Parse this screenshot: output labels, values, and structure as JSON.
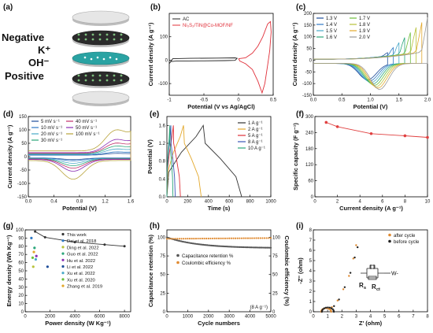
{
  "panel_labels": [
    "(a)",
    "(b)",
    "(c)",
    "(d)",
    "(e)",
    "(f)",
    "(g)",
    "(h)",
    "(i)"
  ],
  "schematic": {
    "labels": [
      "Negative",
      "K⁺",
      "OH⁻",
      "Positive"
    ]
  },
  "colors": {
    "ac": "#222222",
    "hybrid": "#e0303a",
    "f_line": "#e04040",
    "g_line": "#333333",
    "h_retention": "#555555",
    "h_efficiency": "#e08a30"
  },
  "chart_data": [
    {
      "panel": "b",
      "type": "line",
      "xlabel": "Potential (V vs Ag/AgCl)",
      "ylabel": "Current density (A g⁻¹)",
      "xlim": [
        -1,
        0.5
      ],
      "ylim": [
        -150,
        200
      ],
      "xticks": [
        -1,
        -0.5,
        0,
        0.5
      ],
      "yticks": [
        -100,
        0,
        100
      ],
      "legend": "top-left",
      "series": [
        {
          "name": "AC",
          "color": "#222222",
          "points": [
            [
              -1.0,
              -15
            ],
            [
              -0.98,
              -6
            ],
            [
              -0.9,
              -4
            ],
            [
              -0.5,
              -3
            ],
            [
              -0.2,
              -2
            ],
            [
              -0.05,
              -1
            ],
            [
              -0.02,
              8
            ],
            [
              -0.05,
              10
            ],
            [
              -0.3,
              9
            ],
            [
              -0.7,
              8
            ],
            [
              -0.95,
              6
            ],
            [
              -1.0,
              -15
            ]
          ]
        },
        {
          "name": "Ni₃S₂/TiN@Co-MOF/NF",
          "color": "#e0303a",
          "points": [
            [
              0.0,
              6
            ],
            [
              0.1,
              10
            ],
            [
              0.2,
              30
            ],
            [
              0.28,
              60
            ],
            [
              0.35,
              100
            ],
            [
              0.42,
              155
            ],
            [
              0.46,
              165
            ],
            [
              0.47,
              120
            ],
            [
              0.45,
              40
            ],
            [
              0.42,
              -20
            ],
            [
              0.38,
              -100
            ],
            [
              0.34,
              -140
            ],
            [
              0.28,
              -90
            ],
            [
              0.2,
              -40
            ],
            [
              0.1,
              -15
            ],
            [
              0.02,
              -4
            ],
            [
              0.0,
              6
            ]
          ]
        }
      ]
    },
    {
      "panel": "c",
      "type": "line",
      "xlabel": "Potential (V)",
      "ylabel": "Current density (A g⁻¹)",
      "xlim": [
        0.0,
        2.0
      ],
      "ylim": [
        -150,
        200
      ],
      "xticks": [
        0.0,
        0.5,
        1.0,
        1.5,
        2.0
      ],
      "yticks": [
        -150,
        -100,
        -50,
        0,
        50,
        100,
        150,
        200
      ],
      "legend": "top-left",
      "series": [
        {
          "name": "1.3 V",
          "color": "#1f4e9a",
          "vmax": 1.3
        },
        {
          "name": "1.4 V",
          "color": "#2f79c4",
          "vmax": 1.4
        },
        {
          "name": "1.5 V",
          "color": "#48a9c9",
          "vmax": 1.5
        },
        {
          "name": "1.6 V",
          "color": "#2aa67a",
          "vmax": 1.6
        },
        {
          "name": "1.7 V",
          "color": "#6cbf3b",
          "vmax": 1.7
        },
        {
          "name": "1.8 V",
          "color": "#b8c23a",
          "vmax": 1.8
        },
        {
          "name": "1.9 V",
          "color": "#e3a82b",
          "vmax": 1.9
        },
        {
          "name": "2.0 V",
          "color": "#9a9a9a",
          "vmax": 2.0
        }
      ]
    },
    {
      "panel": "d",
      "type": "line",
      "xlabel": "Potential (V)",
      "ylabel": "Current density (A g⁻¹)",
      "xlim": [
        0.0,
        1.6
      ],
      "ylim": [
        -150,
        150
      ],
      "xticks": [
        0.0,
        0.4,
        0.8,
        1.2,
        1.6
      ],
      "yticks": [
        -150,
        -100,
        -50,
        0,
        50,
        100,
        150
      ],
      "legend": "top-left",
      "series": [
        {
          "name": "5 mV s⁻¹",
          "color": "#1f4e9a",
          "amp": 6
        },
        {
          "name": "10 mV s⁻¹",
          "color": "#2f79c4",
          "amp": 10
        },
        {
          "name": "20 mV s⁻¹",
          "color": "#48a9c9",
          "amp": 18
        },
        {
          "name": "30 mV s⁻¹",
          "color": "#2aa67a",
          "amp": 26
        },
        {
          "name": "40 mV s⁻¹",
          "color": "#c0306a",
          "amp": 34
        },
        {
          "name": "50 mV s⁻¹",
          "color": "#8a2fb3",
          "amp": 44
        },
        {
          "name": "100 mV s⁻¹",
          "color": "#b8a33a",
          "amp": 70
        }
      ]
    },
    {
      "panel": "e",
      "type": "line",
      "xlabel": "Time (s)",
      "ylabel": "Potential (V)",
      "xlim": [
        0,
        1000
      ],
      "ylim": [
        0.0,
        1.8
      ],
      "xticks": [
        0,
        200,
        400,
        600,
        800,
        1000
      ],
      "yticks": [
        0.0,
        0.4,
        0.8,
        1.2,
        1.6
      ],
      "legend": "top-right",
      "series": [
        {
          "name": "1 A g⁻¹",
          "color": "#333333",
          "charge_s": 350,
          "total_s": 720
        },
        {
          "name": "2 A g⁻¹",
          "color": "#e3a82b",
          "charge_s": 160,
          "total_s": 330
        },
        {
          "name": "5 A g⁻¹",
          "color": "#e0303a",
          "charge_s": 62,
          "total_s": 130
        },
        {
          "name": "8 A g⁻¹",
          "color": "#3a56b8",
          "charge_s": 38,
          "total_s": 80
        },
        {
          "name": "10 A g⁻¹",
          "color": "#2aa67a",
          "charge_s": 28,
          "total_s": 58
        }
      ]
    },
    {
      "panel": "f",
      "type": "line",
      "xlabel": "Current density (A g⁻¹)",
      "ylabel": "Specific capacity (F g⁻¹)",
      "xlim": [
        0,
        10
      ],
      "ylim": [
        0,
        300
      ],
      "xticks": [
        0,
        2,
        4,
        6,
        8,
        10
      ],
      "yticks": [
        0,
        60,
        120,
        180,
        240,
        300
      ],
      "x": [
        1,
        2,
        5,
        8,
        10
      ],
      "y": [
        278,
        262,
        236,
        228,
        222
      ]
    },
    {
      "panel": "g",
      "type": "scatter",
      "xlabel": "Power density (W Kg⁻¹)",
      "ylabel": "Energy density (Wh Kg⁻¹)",
      "xlim": [
        0,
        8500
      ],
      "ylim": [
        0,
        100
      ],
      "xticks": [
        0,
        2000,
        4000,
        6000,
        8000
      ],
      "yticks": [
        0,
        10,
        20,
        30,
        40,
        50,
        60,
        70,
        80,
        90,
        100
      ],
      "legend": "top-right",
      "this_work": {
        "name": "This work",
        "x": [
          800,
          1600,
          4000,
          6400,
          8000
        ],
        "y": [
          98,
          91,
          85,
          82,
          80
        ]
      },
      "refs": [
        {
          "name": "Dai et al. 2018",
          "color": "#2f79c4",
          "x": 500,
          "y": 90
        },
        {
          "name": "Ding et al. 2022",
          "color": "#b8c23a",
          "x": 650,
          "y": 55
        },
        {
          "name": "Guo et al. 2022",
          "color": "#2aa67a",
          "x": 750,
          "y": 78
        },
        {
          "name": "Hu et al. 2022",
          "color": "#8a2fb3",
          "x": 900,
          "y": 68
        },
        {
          "name": "Li et al. 2022",
          "color": "#1f4e9a",
          "x": 1800,
          "y": 55
        },
        {
          "name": "Xu et al. 2022",
          "color": "#48a9c9",
          "x": 850,
          "y": 64
        },
        {
          "name": "Xu et al. 2020",
          "color": "#6cbf3b",
          "x": 600,
          "y": 66
        },
        {
          "name": "Zhang et al. 2019",
          "color": "#e3a82b",
          "x": 700,
          "y": 73
        }
      ]
    },
    {
      "panel": "h",
      "type": "scatter",
      "xlabel": "Cycle numbers",
      "ylabel": "Capacitance retention (%)",
      "y2label": "Coulombic efficiency (%)",
      "xlim": [
        0,
        5000
      ],
      "ylim": [
        0,
        110
      ],
      "xticks": [
        0,
        1000,
        2000,
        3000,
        4000,
        5000
      ],
      "yticks": [
        0,
        25,
        50,
        75,
        100
      ],
      "annotation": "(8 A g⁻¹)",
      "legend": "center",
      "series": [
        {
          "name": "Capacitance retention %",
          "color": "#555555",
          "start": 100,
          "end": 86
        },
        {
          "name": "Coulombic efficiency %",
          "color": "#e08a30",
          "start": 98,
          "end": 99
        }
      ]
    },
    {
      "panel": "i",
      "type": "scatter",
      "xlabel": "Z' (ohm)",
      "ylabel": "-Z'' (ohm)",
      "xlim": [
        0,
        8
      ],
      "ylim": [
        0,
        8
      ],
      "xticks": [
        0,
        1,
        2,
        3,
        4,
        5,
        6,
        7,
        8
      ],
      "yticks": [
        0,
        1,
        2,
        3,
        4,
        5,
        6,
        7,
        8
      ],
      "legend": "top-right",
      "circuit_labels": [
        "R",
        "s",
        "R",
        "ct",
        "W"
      ],
      "series": [
        {
          "name": "after cycle",
          "color": "#e08a30"
        },
        {
          "name": "before cycle",
          "color": "#222222"
        }
      ]
    }
  ]
}
